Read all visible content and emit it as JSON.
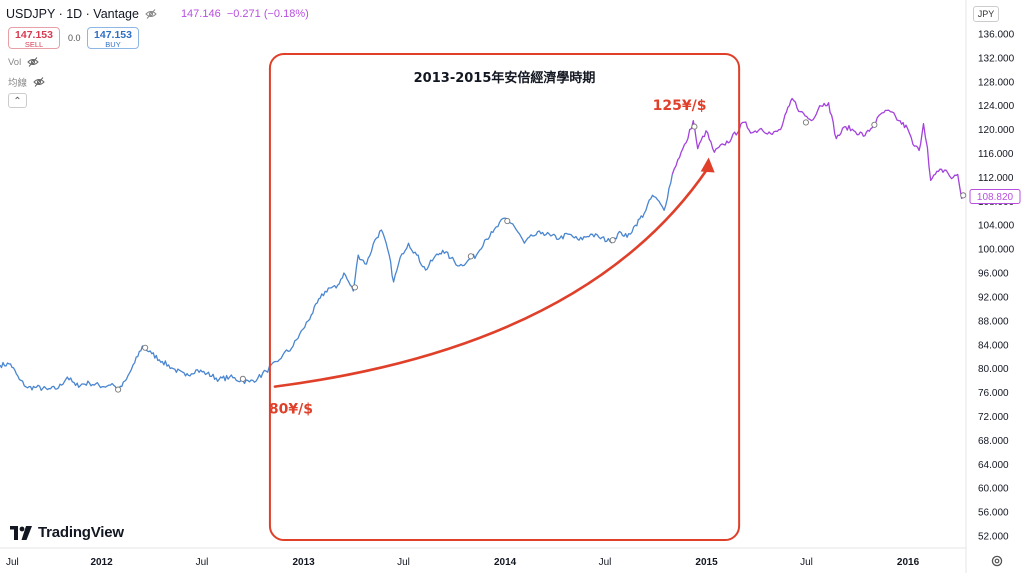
{
  "header": {
    "symbol": "USDJPY · 1D · Vantage",
    "last_price": "147.146",
    "change": "−0.271 (−0.18%)"
  },
  "trade": {
    "sell_price": "147.153",
    "sell_label": "SELL",
    "spread": "0.0",
    "buy_price": "147.153",
    "buy_label": "BUY"
  },
  "indicators": [
    {
      "label": "Vol",
      "icon": "eye-off-icon"
    },
    {
      "label": "均線",
      "icon": "eye-off-icon"
    }
  ],
  "currency": "JPY",
  "logo": "TradingView",
  "colors": {
    "series_blue": "#4a86d0",
    "series_purple": "#a342dc",
    "annotation": "#e0402a",
    "price_tag": "#b84fe0"
  },
  "chart_data": {
    "type": "line",
    "title": "",
    "xlabel": "",
    "ylabel": "",
    "xlim": [
      "2011-07-01",
      "2016-04-15"
    ],
    "ylim": [
      50,
      138
    ],
    "y_ticks": [
      52,
      56,
      60,
      64,
      68,
      72,
      76,
      80,
      84,
      88,
      92,
      96,
      100,
      104,
      108,
      112,
      116,
      120,
      124,
      128,
      132,
      136
    ],
    "y_tick_labels": [
      "52.000",
      "56.000",
      "60.000",
      "64.000",
      "68.000",
      "72.000",
      "76.000",
      "80.000",
      "84.000",
      "88.000",
      "92.000",
      "96.000",
      "100.000",
      "104.000",
      "108.000",
      "112.000",
      "116.000",
      "120.000",
      "124.000",
      "128.000",
      "132.000",
      "136.000"
    ],
    "x_ticks": [
      {
        "date": "2011-07-01",
        "label": "Jul",
        "major": false
      },
      {
        "date": "2012-01-01",
        "label": "2012",
        "major": true
      },
      {
        "date": "2012-07-01",
        "label": "Jul",
        "major": false
      },
      {
        "date": "2013-01-01",
        "label": "2013",
        "major": true
      },
      {
        "date": "2013-07-01",
        "label": "Jul",
        "major": false
      },
      {
        "date": "2014-01-01",
        "label": "2014",
        "major": true
      },
      {
        "date": "2014-07-01",
        "label": "Jul",
        "major": false
      },
      {
        "date": "2015-01-01",
        "label": "2015",
        "major": true
      },
      {
        "date": "2015-07-01",
        "label": "Jul",
        "major": false
      },
      {
        "date": "2016-01-01",
        "label": "2016",
        "major": true
      }
    ],
    "series": [
      {
        "color": "#4a86d0",
        "points": [
          [
            "2011-07-01",
            80.6
          ],
          [
            "2011-07-20",
            80.8
          ],
          [
            "2011-08-05",
            78.2
          ],
          [
            "2011-08-20",
            76.8
          ],
          [
            "2011-09-05",
            76.9
          ],
          [
            "2011-09-25",
            76.5
          ],
          [
            "2011-10-15",
            76.8
          ],
          [
            "2011-10-31",
            78.6
          ],
          [
            "2011-11-15",
            77.2
          ],
          [
            "2011-12-10",
            77.6
          ],
          [
            "2012-01-05",
            77.0
          ],
          [
            "2012-01-20",
            77.5
          ],
          [
            "2012-02-01",
            76.3
          ],
          [
            "2012-02-15",
            78.2
          ],
          [
            "2012-03-01",
            81.0
          ],
          [
            "2012-03-15",
            83.8
          ],
          [
            "2012-04-01",
            82.5
          ],
          [
            "2012-04-20",
            81.2
          ],
          [
            "2012-05-10",
            80.0
          ],
          [
            "2012-06-01",
            78.8
          ],
          [
            "2012-06-20",
            79.8
          ],
          [
            "2012-07-10",
            79.2
          ],
          [
            "2012-08-01",
            78.2
          ],
          [
            "2012-08-20",
            78.6
          ],
          [
            "2012-09-10",
            78.0
          ],
          [
            "2012-09-25",
            77.8
          ],
          [
            "2012-10-10",
            78.4
          ],
          [
            "2012-10-25",
            79.6
          ],
          [
            "2012-11-15",
            81.2
          ],
          [
            "2012-11-25",
            82.4
          ],
          [
            "2012-12-10",
            83.4
          ],
          [
            "2012-12-31",
            86.6
          ],
          [
            "2013-01-15",
            89.0
          ],
          [
            "2013-01-31",
            91.8
          ],
          [
            "2013-02-15",
            93.5
          ],
          [
            "2013-03-01",
            93.5
          ],
          [
            "2013-03-15",
            96.0
          ],
          [
            "2013-04-01",
            93.0
          ],
          [
            "2013-04-10",
            99.0
          ],
          [
            "2013-04-25",
            97.5
          ],
          [
            "2013-05-10",
            101.5
          ],
          [
            "2013-05-22",
            103.2
          ],
          [
            "2013-06-05",
            99.0
          ],
          [
            "2013-06-13",
            94.5
          ],
          [
            "2013-06-28",
            99.2
          ],
          [
            "2013-07-10",
            101.0
          ],
          [
            "2013-07-25",
            99.0
          ],
          [
            "2013-08-10",
            96.5
          ],
          [
            "2013-08-25",
            98.5
          ],
          [
            "2013-09-10",
            99.8
          ],
          [
            "2013-09-25",
            98.5
          ],
          [
            "2013-10-10",
            97.2
          ],
          [
            "2013-10-25",
            98.0
          ],
          [
            "2013-11-10",
            99.0
          ],
          [
            "2013-11-25",
            101.5
          ],
          [
            "2013-12-10",
            102.8
          ],
          [
            "2013-12-31",
            105.2
          ],
          [
            "2014-01-15",
            104.2
          ],
          [
            "2014-02-05",
            101.0
          ],
          [
            "2014-02-20",
            102.2
          ],
          [
            "2014-03-10",
            102.8
          ],
          [
            "2014-03-25",
            102.2
          ],
          [
            "2014-04-10",
            101.8
          ],
          [
            "2014-04-25",
            102.5
          ],
          [
            "2014-05-15",
            101.5
          ],
          [
            "2014-06-05",
            102.5
          ],
          [
            "2014-06-20",
            102.0
          ],
          [
            "2014-07-10",
            101.3
          ],
          [
            "2014-07-30",
            102.8
          ],
          [
            "2014-08-10",
            102.0
          ],
          [
            "2014-08-25",
            104.0
          ],
          [
            "2014-09-10",
            106.0
          ],
          [
            "2014-09-25",
            109.0
          ],
          [
            "2014-10-10",
            107.5
          ],
          [
            "2014-10-16",
            106.5
          ],
          [
            "2014-10-31",
            112.5
          ]
        ]
      },
      {
        "color": "#a342dc",
        "points": [
          [
            "2014-10-31",
            112.5
          ],
          [
            "2014-11-10",
            115.0
          ],
          [
            "2014-11-25",
            117.8
          ],
          [
            "2014-12-08",
            121.5
          ],
          [
            "2014-12-16",
            116.8
          ],
          [
            "2014-12-31",
            119.8
          ],
          [
            "2015-01-15",
            116.2
          ],
          [
            "2015-02-01",
            117.5
          ],
          [
            "2015-02-15",
            118.5
          ],
          [
            "2015-03-10",
            121.2
          ],
          [
            "2015-03-25",
            119.5
          ],
          [
            "2015-04-10",
            120.2
          ],
          [
            "2015-04-30",
            119.2
          ],
          [
            "2015-05-15",
            120.0
          ],
          [
            "2015-05-31",
            124.0
          ],
          [
            "2015-06-05",
            125.2
          ],
          [
            "2015-06-20",
            123.0
          ],
          [
            "2015-07-10",
            121.5
          ],
          [
            "2015-07-25",
            124.0
          ],
          [
            "2015-08-10",
            124.5
          ],
          [
            "2015-08-24",
            118.5
          ],
          [
            "2015-09-10",
            120.5
          ],
          [
            "2015-09-25",
            119.8
          ],
          [
            "2015-10-15",
            119.0
          ],
          [
            "2015-10-31",
            120.8
          ],
          [
            "2015-11-15",
            122.8
          ],
          [
            "2015-11-30",
            123.0
          ],
          [
            "2015-12-15",
            121.5
          ],
          [
            "2015-12-31",
            120.2
          ],
          [
            "2016-01-10",
            117.5
          ],
          [
            "2016-01-21",
            116.5
          ],
          [
            "2016-01-29",
            121.0
          ],
          [
            "2016-02-05",
            117.0
          ],
          [
            "2016-02-11",
            111.5
          ],
          [
            "2016-02-25",
            113.0
          ],
          [
            "2016-03-10",
            113.2
          ],
          [
            "2016-03-20",
            111.8
          ],
          [
            "2016-03-31",
            112.5
          ],
          [
            "2016-04-07",
            108.5
          ],
          [
            "2016-04-12",
            108.8
          ]
        ]
      }
    ],
    "event_markers": [
      [
        "2012-01-31",
        76.5
      ],
      [
        "2012-03-20",
        83.5
      ],
      [
        "2012-09-13",
        78.3
      ],
      [
        "2013-04-04",
        93.6
      ],
      [
        "2013-10-31",
        98.8
      ],
      [
        "2014-01-05",
        104.7
      ],
      [
        "2014-07-15",
        101.5
      ],
      [
        "2014-12-10",
        120.5
      ],
      [
        "2015-06-30",
        121.2
      ],
      [
        "2015-11-01",
        120.8
      ],
      [
        "2016-04-10",
        109.0
      ]
    ],
    "last_value": "108.820",
    "annotation": {
      "period_label": "2013-2015年安倍經濟學時期",
      "period_start": "2012-11-01",
      "period_end": "2015-03-01",
      "start_label": "80¥/$",
      "end_label": "125¥/$",
      "arrow_from": [
        "2012-11-10",
        77.0
      ],
      "arrow_to": [
        "2015-01-03",
        114.5
      ]
    }
  }
}
